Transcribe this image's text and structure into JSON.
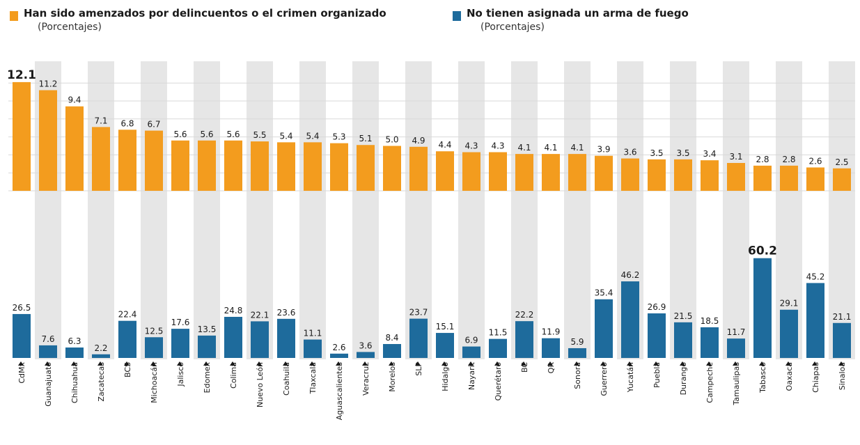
{
  "legend": {
    "series1_title": "Han sido amenzados por delincuentos o el crimen organizado",
    "series1_subtitle": "(Porcentajes)",
    "series2_title": "No tienen asignada un arma de fuego",
    "series2_subtitle": "(Porcentajes)"
  },
  "colors": {
    "orange": "#f39c1e",
    "blue": "#1e6b9c",
    "stripe": "#e6e6e6"
  },
  "chart_data": {
    "type": "bar",
    "categories": [
      "CdMx",
      "Guanajuato",
      "Chihuahua",
      "Zacatecas",
      "BCS",
      "Michoacán",
      "Jalisco",
      "Edomex",
      "Colima",
      "Nuevo León",
      "Coahuila",
      "Tlaxcala",
      "Aguascalientes",
      "Veracruz",
      "Morelos",
      "SLP",
      "Hidalgo",
      "Nayarit",
      "Querétaro",
      "BC",
      "QR",
      "Sonora",
      "Guerrero",
      "Yucatán",
      "Puebla",
      "Durango",
      "Campeche",
      "Tamaulipas",
      "Tabasco",
      "Oaxaca",
      "Chiapas",
      "Sinaloa"
    ],
    "series": [
      {
        "name": "Han sido amenzados por delincuentos o el crimen organizado",
        "values": [
          12.1,
          11.2,
          9.4,
          7.1,
          6.8,
          6.7,
          5.6,
          5.6,
          5.6,
          5.5,
          5.4,
          5.4,
          5.3,
          5.1,
          5.0,
          4.9,
          4.4,
          4.3,
          4.3,
          4.1,
          4.1,
          4.1,
          3.9,
          3.6,
          3.5,
          3.5,
          3.4,
          3.1,
          2.8,
          2.8,
          2.6,
          2.5
        ]
      },
      {
        "name": "No tienen asignada un arma de fuego",
        "values": [
          26.5,
          7.6,
          6.3,
          2.2,
          22.4,
          12.5,
          17.6,
          13.5,
          24.8,
          22.1,
          23.6,
          11.1,
          2.6,
          3.6,
          8.4,
          23.7,
          15.1,
          6.9,
          11.5,
          22.2,
          11.9,
          5.9,
          35.4,
          46.2,
          26.9,
          21.5,
          18.5,
          11.7,
          60.2,
          29.1,
          45.2,
          21.1
        ]
      }
    ],
    "labels": {
      "top": [
        "12.1",
        "11.2",
        "9.4",
        "7.1",
        "6.8",
        "6.7",
        "5.6",
        "5.6",
        "5.6",
        "5.5",
        "5.4",
        "5.4",
        "5.3",
        "5.1",
        "5.0",
        "4.9",
        "4.4",
        "4.3",
        "4.3",
        "4.1",
        "4.1",
        "4.1",
        "3.9",
        "3.6",
        "3.5",
        "3.5",
        "3.4",
        "3.1",
        "2.8",
        "2.8",
        "2.6",
        "2.5"
      ],
      "bottom": [
        "26.5",
        "7.6",
        "6.3",
        "2.2",
        "22.4",
        "12.5",
        "17.6",
        "13.5",
        "24.8",
        "22.1",
        "23.6",
        "11.1",
        "2.6",
        "3.6",
        "8.4",
        "23.7",
        "15.1",
        "6.9",
        "11.5",
        "22.2",
        "11.9",
        "5.9",
        "35.4",
        "46.2",
        "26.9",
        "21.5",
        "18.5",
        "11.7",
        "60.2",
        "29.1",
        "45.2",
        "21.1"
      ]
    },
    "highlight_max_label": true,
    "grid": true,
    "legend_position": "top"
  }
}
